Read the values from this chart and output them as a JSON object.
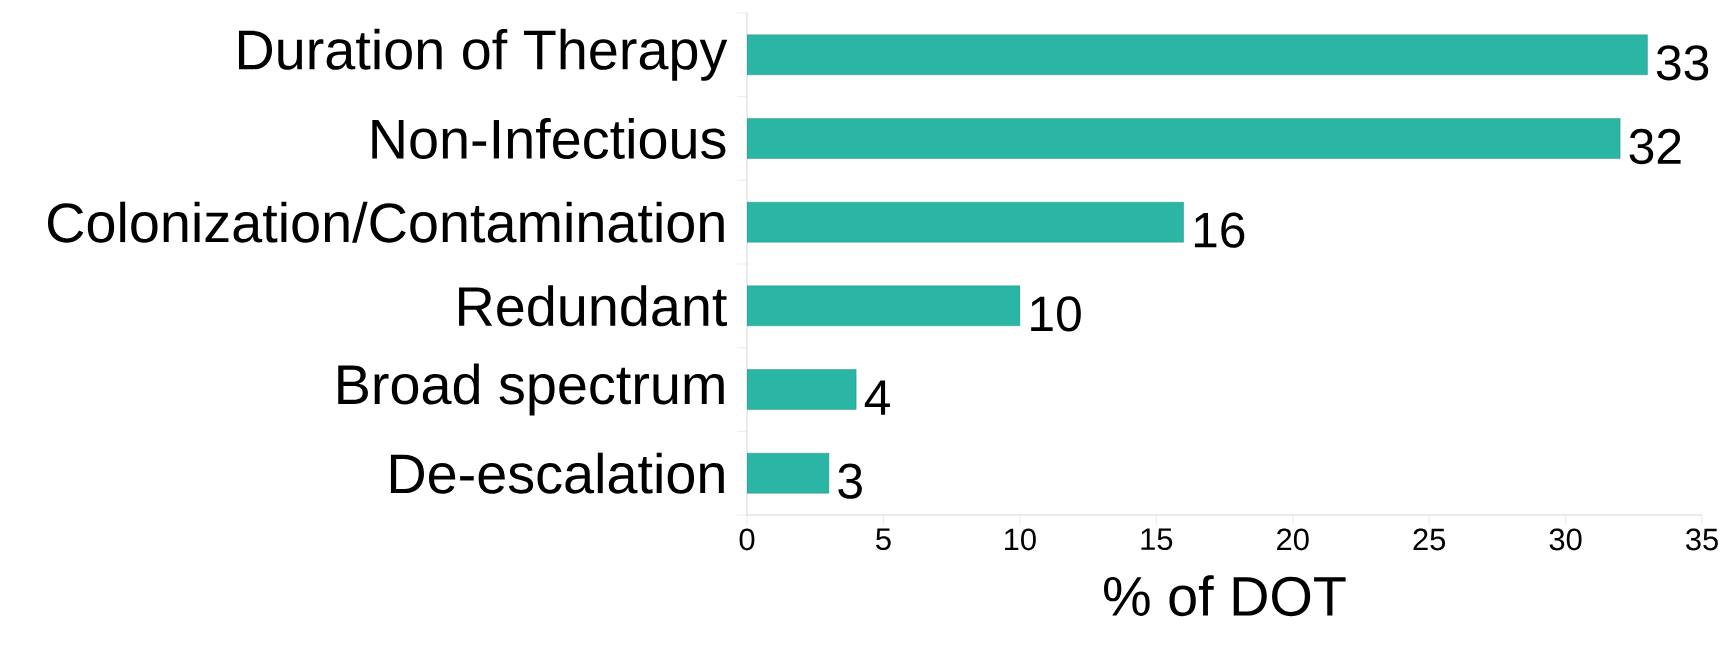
{
  "chart_data": {
    "type": "bar",
    "orientation": "horizontal",
    "xlabel": "% of DOT",
    "categories": [
      "Duration of Therapy",
      "Non-Infectious",
      "Colonization/Contamination",
      "Redundant",
      "Broad spectrum",
      "De-escalation"
    ],
    "values": [
      33,
      32,
      16,
      10,
      4,
      3
    ],
    "color": "#2bb5a5",
    "xlim": [
      0,
      35
    ],
    "xticks": [
      0,
      5,
      10,
      15,
      20,
      25,
      30,
      35
    ],
    "data_labels": true,
    "grid": false
  }
}
